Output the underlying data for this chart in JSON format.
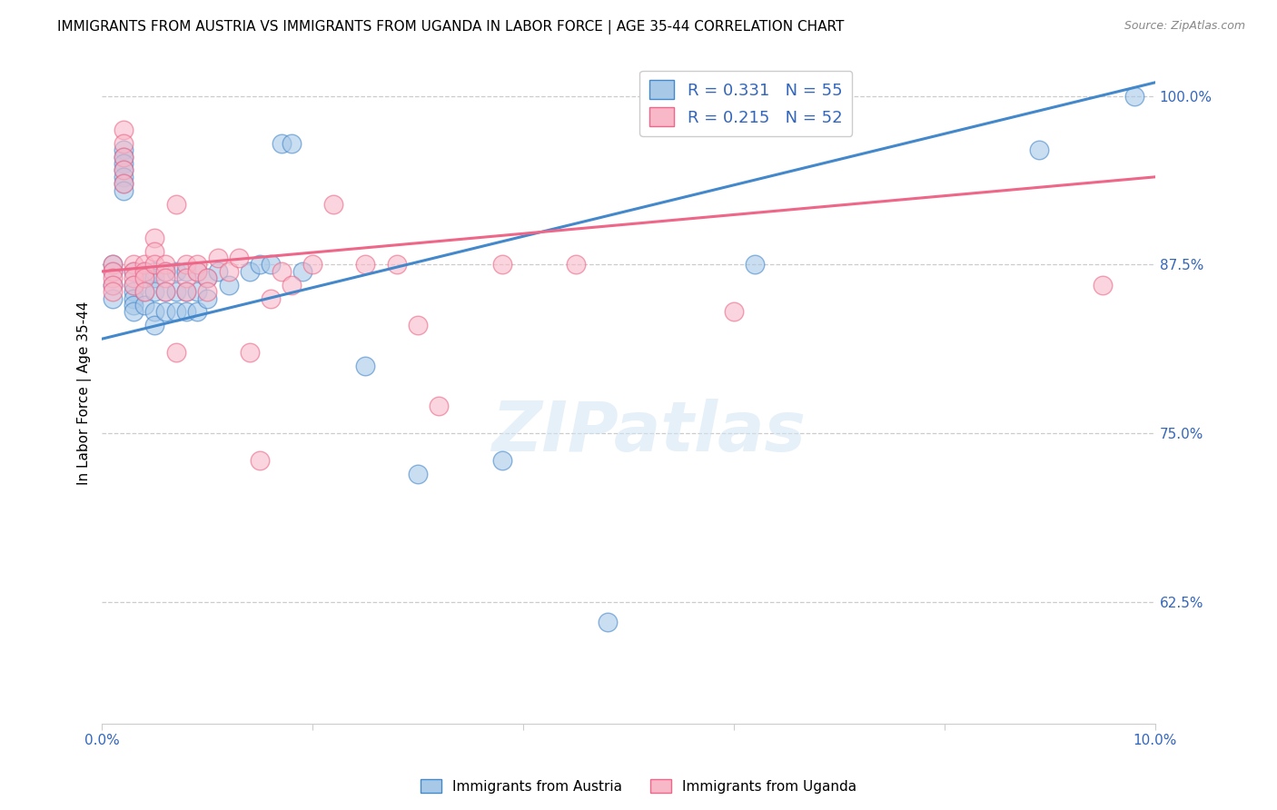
{
  "title": "IMMIGRANTS FROM AUSTRIA VS IMMIGRANTS FROM UGANDA IN LABOR FORCE | AGE 35-44 CORRELATION CHART",
  "source": "Source: ZipAtlas.com",
  "ylabel": "In Labor Force | Age 35-44",
  "xlim": [
    0.0,
    0.1
  ],
  "ylim": [
    0.535,
    1.025
  ],
  "right_yticks": [
    1.0,
    0.875,
    0.75,
    0.625
  ],
  "right_yticklabels": [
    "100.0%",
    "87.5%",
    "75.0%",
    "62.5%"
  ],
  "xticks": [
    0.0,
    0.02,
    0.04,
    0.06,
    0.08,
    0.1
  ],
  "xticklabels": [
    "0.0%",
    "",
    "",
    "",
    "",
    "10.0%"
  ],
  "austria_color": "#a8c8e8",
  "uganda_color": "#f8b8c8",
  "austria_line_color": "#4488cc",
  "uganda_line_color": "#ee6688",
  "austria_R": 0.331,
  "austria_N": 55,
  "uganda_R": 0.215,
  "uganda_N": 52,
  "austria_x": [
    0.001,
    0.001,
    0.001,
    0.001,
    0.002,
    0.002,
    0.002,
    0.002,
    0.002,
    0.002,
    0.002,
    0.003,
    0.003,
    0.003,
    0.003,
    0.003,
    0.003,
    0.004,
    0.004,
    0.004,
    0.004,
    0.005,
    0.005,
    0.005,
    0.005,
    0.005,
    0.006,
    0.006,
    0.006,
    0.007,
    0.007,
    0.007,
    0.008,
    0.008,
    0.008,
    0.009,
    0.009,
    0.009,
    0.01,
    0.01,
    0.011,
    0.012,
    0.014,
    0.015,
    0.016,
    0.017,
    0.018,
    0.019,
    0.025,
    0.03,
    0.038,
    0.048,
    0.062,
    0.089,
    0.098
  ],
  "austria_y": [
    0.875,
    0.87,
    0.86,
    0.85,
    0.96,
    0.955,
    0.95,
    0.945,
    0.94,
    0.935,
    0.93,
    0.87,
    0.86,
    0.855,
    0.85,
    0.845,
    0.84,
    0.87,
    0.865,
    0.855,
    0.845,
    0.87,
    0.865,
    0.855,
    0.84,
    0.83,
    0.87,
    0.855,
    0.84,
    0.87,
    0.855,
    0.84,
    0.87,
    0.855,
    0.84,
    0.87,
    0.855,
    0.84,
    0.865,
    0.85,
    0.87,
    0.86,
    0.87,
    0.875,
    0.875,
    0.965,
    0.965,
    0.87,
    0.8,
    0.72,
    0.73,
    0.61,
    0.875,
    0.96,
    1.0
  ],
  "uganda_x": [
    0.001,
    0.001,
    0.001,
    0.001,
    0.001,
    0.002,
    0.002,
    0.002,
    0.002,
    0.002,
    0.003,
    0.003,
    0.003,
    0.003,
    0.004,
    0.004,
    0.004,
    0.004,
    0.005,
    0.005,
    0.005,
    0.006,
    0.006,
    0.006,
    0.006,
    0.007,
    0.007,
    0.008,
    0.008,
    0.008,
    0.009,
    0.009,
    0.01,
    0.01,
    0.011,
    0.012,
    0.013,
    0.014,
    0.015,
    0.016,
    0.017,
    0.018,
    0.02,
    0.022,
    0.025,
    0.028,
    0.03,
    0.032,
    0.038,
    0.045,
    0.06,
    0.095
  ],
  "uganda_y": [
    0.875,
    0.87,
    0.865,
    0.86,
    0.855,
    0.975,
    0.965,
    0.955,
    0.945,
    0.935,
    0.875,
    0.87,
    0.865,
    0.86,
    0.875,
    0.87,
    0.865,
    0.855,
    0.895,
    0.885,
    0.875,
    0.875,
    0.87,
    0.865,
    0.855,
    0.92,
    0.81,
    0.875,
    0.865,
    0.855,
    0.875,
    0.87,
    0.865,
    0.855,
    0.88,
    0.87,
    0.88,
    0.81,
    0.73,
    0.85,
    0.87,
    0.86,
    0.875,
    0.92,
    0.875,
    0.875,
    0.83,
    0.77,
    0.875,
    0.875,
    0.84,
    0.86
  ],
  "watermark": "ZIPatlas",
  "title_fontsize": 11,
  "axis_label_fontsize": 11,
  "tick_fontsize": 11
}
